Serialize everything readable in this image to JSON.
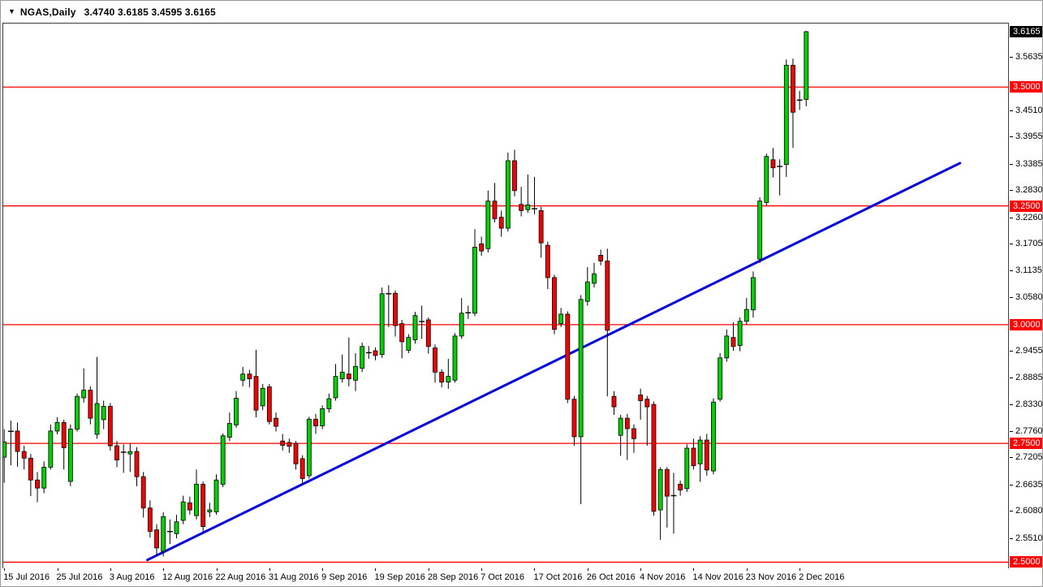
{
  "window": {
    "symbol_title": "NGAS,Daily",
    "ohlc_line": "3.4740 3.6185 3.4595 3.6165",
    "dropdown_glyph": "▼"
  },
  "colors": {
    "bull": "#00cf00",
    "bear": "#f20000",
    "candle_outline": "#000000",
    "wick": "#000000",
    "level_line": "#ff0000",
    "trendline": "#0000d8",
    "current_tag_bg": "#000000",
    "level_tag_bg": "#ff0000",
    "tag_text": "#ffffff",
    "axis_text": "#000000",
    "background": "#ffffff"
  },
  "chart_data": {
    "type": "candlestick",
    "symbol": "NGAS",
    "timeframe": "Daily",
    "last_ohlc": {
      "open": 3.474,
      "high": 3.6185,
      "low": 3.4595,
      "close": 3.6165
    },
    "ylim": [
      2.4905,
      3.6354
    ],
    "grid": false,
    "layout": {
      "x_start": 1.2,
      "x_step": 8.166,
      "body_width": 5
    },
    "hlines": [
      {
        "price": 3.5,
        "label": "3.5000"
      },
      {
        "price": 3.25,
        "label": "3.2500"
      },
      {
        "price": 3.0,
        "label": "3.0000"
      },
      {
        "price": 2.75,
        "label": "2.7500"
      },
      {
        "price": 2.5,
        "label": "2.5000"
      }
    ],
    "current_price": {
      "price": 3.6165,
      "label": "3.6165"
    },
    "trendline": {
      "from": {
        "index": 21.6,
        "price": 2.5047
      },
      "to": {
        "index": 144.2,
        "price": 3.3399
      }
    },
    "price_ticks": [
      "3.5635",
      "3.4510",
      "3.3955",
      "3.3385",
      "3.2830",
      "3.2260",
      "3.1705",
      "3.1135",
      "3.0580",
      "2.9455",
      "2.8885",
      "2.8330",
      "2.7760",
      "2.7205",
      "2.6635",
      "2.6080",
      "2.5510"
    ],
    "date_labels": [
      {
        "index": 0,
        "label": "15 Jul 2016"
      },
      {
        "index": 8,
        "label": "25 Jul 2016"
      },
      {
        "index": 16,
        "label": "3 Aug 2016"
      },
      {
        "index": 24,
        "label": "12 Aug 2016"
      },
      {
        "index": 32,
        "label": "22 Aug 2016"
      },
      {
        "index": 40,
        "label": "31 Aug 2016"
      },
      {
        "index": 48,
        "label": "9 Sep 2016"
      },
      {
        "index": 56,
        "label": "19 Sep 2016"
      },
      {
        "index": 64,
        "label": "28 Sep 2016"
      },
      {
        "index": 72,
        "label": "7 Oct 2016"
      },
      {
        "index": 80,
        "label": "17 Oct 2016"
      },
      {
        "index": 88,
        "label": "26 Oct 2016"
      },
      {
        "index": 96,
        "label": "4 Nov 2016"
      },
      {
        "index": 104,
        "label": "14 Nov 2016"
      },
      {
        "index": 112,
        "label": "23 Nov 2016"
      },
      {
        "index": 120,
        "label": "2 Dec 2016"
      }
    ],
    "candles": [
      [
        2.721,
        2.78,
        2.667,
        2.753
      ],
      [
        2.775,
        2.798,
        2.704,
        2.776
      ],
      [
        2.776,
        2.794,
        2.701,
        2.733
      ],
      [
        2.733,
        2.745,
        2.695,
        2.719
      ],
      [
        2.719,
        2.728,
        2.639,
        2.673
      ],
      [
        2.673,
        2.69,
        2.626,
        2.656
      ],
      [
        2.656,
        2.712,
        2.645,
        2.7
      ],
      [
        2.7,
        2.79,
        2.695,
        2.776
      ],
      [
        2.776,
        2.805,
        2.769,
        2.794
      ],
      [
        2.794,
        2.8,
        2.695,
        2.741
      ],
      [
        2.67,
        2.79,
        2.66,
        2.78
      ],
      [
        2.78,
        2.855,
        2.775,
        2.849
      ],
      [
        2.846,
        2.908,
        2.836,
        2.862
      ],
      [
        2.862,
        2.87,
        2.79,
        2.803
      ],
      [
        2.769,
        2.932,
        2.76,
        2.834
      ],
      [
        2.8,
        2.84,
        2.78,
        2.828
      ],
      [
        2.828,
        2.835,
        2.735,
        2.745
      ],
      [
        2.745,
        2.755,
        2.7,
        2.715
      ],
      [
        2.733,
        2.748,
        2.688,
        2.73
      ],
      [
        2.728,
        2.75,
        2.69,
        2.733
      ],
      [
        2.733,
        2.742,
        2.66,
        2.68
      ],
      [
        2.68,
        2.69,
        2.594,
        2.614
      ],
      [
        2.614,
        2.63,
        2.552,
        2.565
      ],
      [
        2.568,
        2.58,
        2.515,
        2.53
      ],
      [
        2.523,
        2.605,
        2.512,
        2.596
      ],
      [
        2.563,
        2.59,
        2.538,
        2.566
      ],
      [
        2.56,
        2.6,
        2.55,
        2.585
      ],
      [
        2.588,
        2.64,
        2.58,
        2.627
      ],
      [
        2.625,
        2.638,
        2.6,
        2.61
      ],
      [
        2.598,
        2.695,
        2.59,
        2.664
      ],
      [
        2.664,
        2.67,
        2.565,
        2.575
      ],
      [
        2.606,
        2.625,
        2.595,
        2.61
      ],
      [
        2.606,
        2.685,
        2.6,
        2.673
      ],
      [
        2.664,
        2.771,
        2.658,
        2.766
      ],
      [
        2.763,
        2.815,
        2.755,
        2.792
      ],
      [
        2.789,
        2.86,
        2.783,
        2.845
      ],
      [
        2.883,
        2.911,
        2.87,
        2.896
      ],
      [
        2.896,
        2.905,
        2.868,
        2.886
      ],
      [
        2.891,
        2.947,
        2.805,
        2.82
      ],
      [
        2.829,
        2.875,
        2.82,
        2.866
      ],
      [
        2.869,
        2.875,
        2.79,
        2.796
      ],
      [
        2.803,
        2.815,
        2.775,
        2.786
      ],
      [
        2.755,
        2.77,
        2.735,
        2.746
      ],
      [
        2.752,
        2.76,
        2.73,
        2.744
      ],
      [
        2.75,
        2.755,
        2.695,
        2.707
      ],
      [
        2.718,
        2.725,
        2.664,
        2.676
      ],
      [
        2.682,
        2.806,
        2.676,
        2.801
      ],
      [
        2.801,
        2.812,
        2.77,
        2.787
      ],
      [
        2.787,
        2.83,
        2.78,
        2.823
      ],
      [
        2.823,
        2.855,
        2.815,
        2.844
      ],
      [
        2.846,
        2.917,
        2.84,
        2.891
      ],
      [
        2.886,
        2.937,
        2.878,
        2.9
      ],
      [
        2.896,
        2.973,
        2.87,
        2.886
      ],
      [
        2.883,
        2.94,
        2.86,
        2.912
      ],
      [
        2.908,
        2.962,
        2.9,
        2.954
      ],
      [
        2.942,
        2.955,
        2.928,
        2.94
      ],
      [
        2.945,
        2.952,
        2.925,
        2.935
      ],
      [
        2.937,
        3.078,
        2.93,
        3.065
      ],
      [
        3.066,
        3.083,
        2.995,
        3.064
      ],
      [
        3.066,
        3.072,
        2.975,
        2.998
      ],
      [
        3.002,
        3.01,
        2.929,
        2.964
      ],
      [
        2.946,
        2.98,
        2.94,
        2.973
      ],
      [
        2.968,
        3.027,
        2.96,
        3.019
      ],
      [
        3.005,
        3.04,
        2.97,
        3.008
      ],
      [
        3.01,
        3.015,
        2.939,
        2.954
      ],
      [
        2.951,
        2.958,
        2.878,
        2.9
      ],
      [
        2.9,
        2.906,
        2.868,
        2.879
      ],
      [
        2.879,
        2.928,
        2.865,
        2.891
      ],
      [
        2.883,
        2.982,
        2.878,
        2.976
      ],
      [
        2.976,
        3.056,
        2.97,
        3.024
      ],
      [
        3.024,
        3.04,
        3.012,
        3.026
      ],
      [
        3.024,
        3.201,
        3.018,
        3.163
      ],
      [
        3.17,
        3.185,
        3.145,
        3.155
      ],
      [
        3.16,
        3.282,
        3.152,
        3.26
      ],
      [
        3.26,
        3.298,
        3.215,
        3.223
      ],
      [
        3.226,
        3.24,
        3.185,
        3.203
      ],
      [
        3.203,
        3.362,
        3.196,
        3.345
      ],
      [
        3.345,
        3.368,
        3.27,
        3.282
      ],
      [
        3.253,
        3.29,
        3.228,
        3.24
      ],
      [
        3.242,
        3.316,
        3.235,
        3.252
      ],
      [
        3.245,
        3.311,
        3.232,
        3.243
      ],
      [
        3.24,
        3.248,
        3.141,
        3.172
      ],
      [
        3.167,
        3.175,
        3.075,
        3.099
      ],
      [
        3.099,
        3.105,
        2.98,
        2.99
      ],
      [
        3.002,
        3.035,
        2.995,
        3.022
      ],
      [
        3.022,
        3.028,
        2.835,
        2.843
      ],
      [
        2.843,
        2.85,
        2.745,
        2.764
      ],
      [
        2.764,
        3.062,
        2.622,
        3.053
      ],
      [
        3.049,
        3.121,
        3.04,
        3.09
      ],
      [
        3.087,
        3.13,
        3.078,
        3.107
      ],
      [
        3.146,
        3.158,
        3.125,
        3.134
      ],
      [
        3.134,
        3.16,
        2.849,
        2.988
      ],
      [
        2.849,
        2.86,
        2.81,
        2.827
      ],
      [
        2.767,
        2.81,
        2.724,
        2.803
      ],
      [
        2.803,
        2.812,
        2.715,
        2.781
      ],
      [
        2.781,
        2.79,
        2.73,
        2.76
      ],
      [
        2.852,
        2.865,
        2.8,
        2.84
      ],
      [
        2.843,
        2.85,
        2.745,
        2.827
      ],
      [
        2.832,
        2.838,
        2.598,
        2.607
      ],
      [
        2.61,
        2.7,
        2.547,
        2.695
      ],
      [
        2.695,
        2.7,
        2.573,
        2.639
      ],
      [
        2.639,
        2.688,
        2.56,
        2.641
      ],
      [
        2.664,
        2.672,
        2.64,
        2.652
      ],
      [
        2.655,
        2.748,
        2.648,
        2.74
      ],
      [
        2.74,
        2.76,
        2.695,
        2.703
      ],
      [
        2.707,
        2.765,
        2.669,
        2.757
      ],
      [
        2.757,
        2.77,
        2.682,
        2.694
      ],
      [
        2.692,
        2.845,
        2.685,
        2.837
      ],
      [
        2.843,
        2.94,
        2.838,
        2.93
      ],
      [
        2.93,
        2.99,
        2.922,
        2.976
      ],
      [
        2.973,
        3.005,
        2.945,
        2.954
      ],
      [
        2.956,
        3.015,
        2.944,
        3.007
      ],
      [
        3.007,
        3.056,
        3.0,
        3.032
      ],
      [
        3.031,
        3.112,
        3.015,
        3.099
      ],
      [
        3.138,
        3.268,
        3.13,
        3.26
      ],
      [
        3.257,
        3.36,
        3.25,
        3.354
      ],
      [
        3.347,
        3.372,
        3.31,
        3.33
      ],
      [
        3.332,
        3.348,
        3.272,
        3.334
      ],
      [
        3.337,
        3.558,
        3.311,
        3.546
      ],
      [
        3.546,
        3.56,
        3.372,
        3.447
      ],
      [
        3.471,
        3.492,
        3.452,
        3.474
      ],
      [
        3.474,
        3.6185,
        3.4595,
        3.6165
      ]
    ]
  }
}
